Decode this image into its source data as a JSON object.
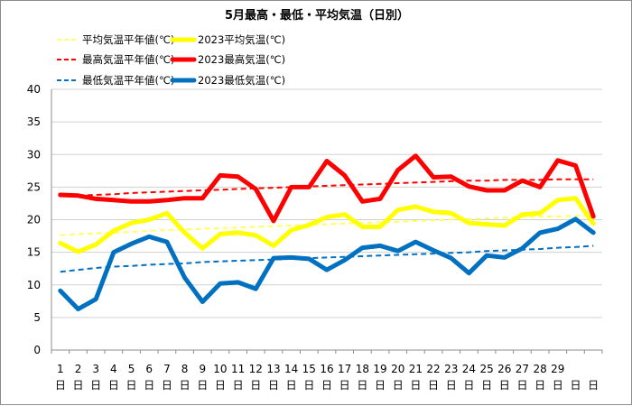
{
  "chart_data": {
    "type": "line",
    "title": "5月最高・最低・平均気温（日別）",
    "xlabel": "",
    "ylabel": "",
    "ylim": [
      0,
      40
    ],
    "yticks": [
      0,
      5,
      10,
      15,
      20,
      25,
      30,
      35,
      40
    ],
    "categories": [
      "1",
      "2",
      "3",
      "4",
      "5",
      "6",
      "7",
      "8",
      "9",
      "10",
      "11",
      "12",
      "13",
      "14",
      "15",
      "16",
      "17",
      "18",
      "19",
      "20",
      "21",
      "22",
      "23",
      "24",
      "25",
      "26",
      "27",
      "28",
      "29",
      "",
      ""
    ],
    "day_suffix": "日",
    "grid": true,
    "legend_position": "top",
    "series": [
      {
        "name": "平均気温平年値(℃)",
        "color": "#ffff66",
        "style": "dashed",
        "width": 2,
        "values": [
          17.6,
          17.8,
          17.9,
          18.0,
          18.1,
          18.3,
          18.4,
          18.5,
          18.6,
          18.7,
          18.8,
          18.9,
          19.0,
          19.1,
          19.2,
          19.3,
          19.4,
          19.5,
          19.6,
          19.7,
          19.8,
          19.9,
          20.0,
          20.1,
          20.2,
          20.3,
          20.4,
          20.5,
          20.5,
          20.6,
          20.7
        ]
      },
      {
        "name": "2023平均気温(℃)",
        "color": "#ffff00",
        "style": "solid",
        "width": 5,
        "values": [
          16.4,
          15.1,
          16.2,
          18.3,
          19.5,
          20.0,
          21.0,
          18.0,
          15.6,
          17.8,
          18.0,
          17.6,
          16.0,
          18.4,
          19.2,
          20.4,
          20.8,
          18.9,
          18.9,
          21.5,
          22.0,
          21.2,
          21.0,
          19.5,
          19.3,
          19.1,
          20.8,
          21.0,
          23.0,
          23.3,
          19.4
        ]
      },
      {
        "name": "最高気温平年値(℃)",
        "color": "#ff0000",
        "style": "dashed",
        "width": 2,
        "values": [
          23.6,
          23.7,
          23.8,
          23.9,
          24.1,
          24.2,
          24.3,
          24.4,
          24.5,
          24.6,
          24.7,
          24.8,
          24.9,
          25.0,
          25.1,
          25.2,
          25.3,
          25.4,
          25.5,
          25.6,
          25.7,
          25.8,
          25.9,
          26.0,
          26.0,
          26.1,
          26.1,
          26.1,
          26.2,
          26.2,
          26.2
        ]
      },
      {
        "name": "2023最高気温(℃)",
        "color": "#ff0000",
        "style": "solid",
        "width": 5,
        "values": [
          23.8,
          23.7,
          23.2,
          23.0,
          22.8,
          22.8,
          23.0,
          23.3,
          23.3,
          26.8,
          26.6,
          24.7,
          19.8,
          25.0,
          25.0,
          29.0,
          26.8,
          22.8,
          23.2,
          27.6,
          29.8,
          26.5,
          26.6,
          25.1,
          24.5,
          24.5,
          26.0,
          25.0,
          29.1,
          28.3,
          20.5
        ]
      },
      {
        "name": "最低気温平年値(℃)",
        "color": "#0070c0",
        "style": "dashed",
        "width": 2,
        "values": [
          12.0,
          12.3,
          12.6,
          12.8,
          12.9,
          13.1,
          13.2,
          13.3,
          13.5,
          13.6,
          13.7,
          13.8,
          13.9,
          14.0,
          14.1,
          14.2,
          14.3,
          14.4,
          14.5,
          14.6,
          14.7,
          14.8,
          14.9,
          15.0,
          15.2,
          15.3,
          15.4,
          15.5,
          15.7,
          15.8,
          16.0
        ]
      },
      {
        "name": "2023最低気温(℃)",
        "color": "#0070c0",
        "style": "solid",
        "width": 5,
        "values": [
          9.1,
          6.3,
          7.8,
          15.0,
          16.3,
          17.4,
          16.6,
          11.1,
          7.4,
          10.2,
          10.4,
          9.4,
          14.1,
          14.2,
          14.0,
          12.3,
          13.8,
          15.7,
          16.0,
          15.2,
          16.6,
          15.3,
          14.1,
          11.8,
          14.5,
          14.2,
          15.6,
          18.0,
          18.6,
          20.1,
          18.0
        ]
      }
    ],
    "legend_order": [
      0,
      1,
      2,
      3,
      4,
      5
    ]
  }
}
